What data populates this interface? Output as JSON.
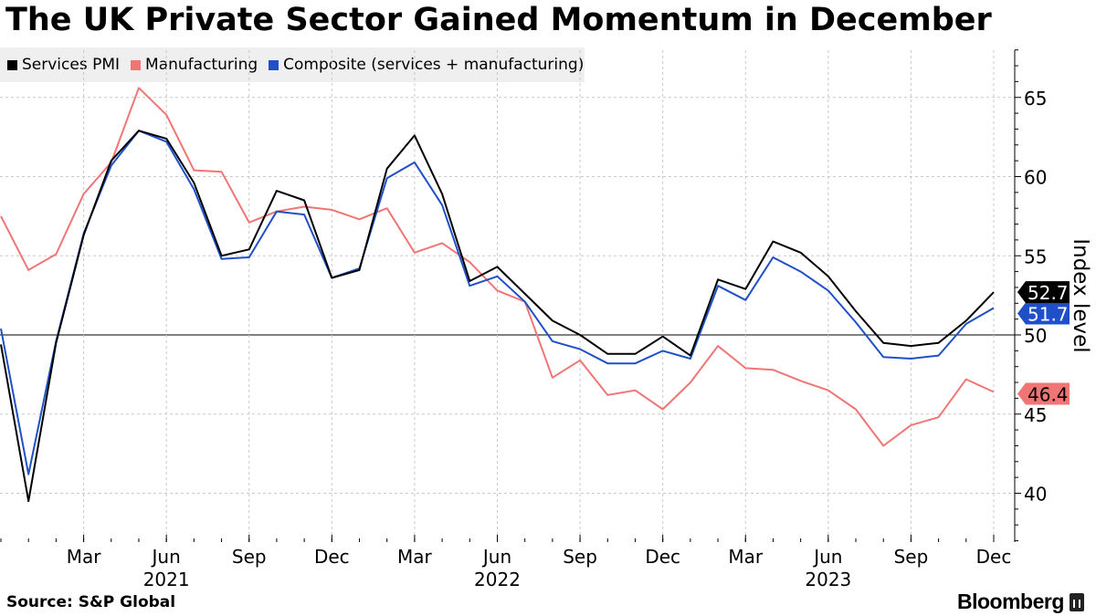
{
  "title": "The UK Private Sector Gained Momentum in December",
  "source": "Source: S&P Global",
  "brand": "Bloomberg",
  "colors": {
    "services": "#000000",
    "manufacturing": "#f07575",
    "composite": "#1f50c8"
  },
  "chart_data": {
    "type": "line",
    "title": "The UK Private Sector Gained Momentum in December",
    "ylabel": "Index level",
    "xlabel": "",
    "ylim": [
      37,
      68
    ],
    "yticks": [
      40,
      45,
      50,
      55,
      60,
      65
    ],
    "reference_line": 50,
    "x": [
      "Dec 2020",
      "Jan 2021",
      "Feb 2021",
      "Mar 2021",
      "Apr 2021",
      "May 2021",
      "Jun 2021",
      "Jul 2021",
      "Aug 2021",
      "Sep 2021",
      "Oct 2021",
      "Nov 2021",
      "Dec 2021",
      "Jan 2022",
      "Feb 2022",
      "Mar 2022",
      "Apr 2022",
      "May 2022",
      "Jun 2022",
      "Jul 2022",
      "Aug 2022",
      "Sep 2022",
      "Oct 2022",
      "Nov 2022",
      "Dec 2022",
      "Jan 2023",
      "Feb 2023",
      "Mar 2023",
      "Apr 2023",
      "May 2023",
      "Jun 2023",
      "Jul 2023",
      "Aug 2023",
      "Sep 2023",
      "Oct 2023",
      "Nov 2023",
      "Dec 2023"
    ],
    "x_ticks": [
      {
        "label": "Mar",
        "index": 3
      },
      {
        "label": "Jun",
        "index": 6
      },
      {
        "label": "Sep",
        "index": 9
      },
      {
        "label": "Dec",
        "index": 12
      },
      {
        "label": "Mar",
        "index": 15
      },
      {
        "label": "Jun",
        "index": 18
      },
      {
        "label": "Sep",
        "index": 21
      },
      {
        "label": "Dec",
        "index": 24
      },
      {
        "label": "Mar",
        "index": 27
      },
      {
        "label": "Jun",
        "index": 30
      },
      {
        "label": "Sep",
        "index": 33
      },
      {
        "label": "Dec",
        "index": 36
      }
    ],
    "year_labels": [
      {
        "label": "2021",
        "index": 6
      },
      {
        "label": "2022",
        "index": 18
      },
      {
        "label": "2023",
        "index": 30
      }
    ],
    "series": [
      {
        "name": "Services PMI",
        "key": "services",
        "values": [
          49.4,
          39.5,
          49.5,
          56.3,
          61.0,
          62.9,
          62.4,
          59.6,
          55.0,
          55.4,
          59.1,
          58.5,
          53.6,
          54.1,
          60.5,
          62.6,
          58.9,
          53.4,
          54.3,
          52.6,
          50.9,
          50.0,
          48.8,
          48.8,
          49.9,
          48.7,
          53.5,
          52.9,
          55.9,
          55.2,
          53.7,
          51.5,
          49.5,
          49.3,
          49.5,
          50.9,
          52.7
        ],
        "end_label": "52.7"
      },
      {
        "name": "Manufacturing",
        "key": "manufacturing",
        "values": [
          57.5,
          54.1,
          55.1,
          58.9,
          60.9,
          65.6,
          63.9,
          60.4,
          60.3,
          57.1,
          57.8,
          58.1,
          57.9,
          57.3,
          58.0,
          55.2,
          55.8,
          54.6,
          52.8,
          52.1,
          47.3,
          48.4,
          46.2,
          46.5,
          45.3,
          47.0,
          49.3,
          47.9,
          47.8,
          47.1,
          46.5,
          45.3,
          43.0,
          44.3,
          44.8,
          47.2,
          46.4
        ],
        "end_label": "46.4"
      },
      {
        "name": "Composite (services + manufacturing)",
        "key": "composite",
        "values": [
          50.4,
          41.2,
          49.6,
          56.4,
          60.7,
          62.9,
          62.2,
          59.2,
          54.8,
          54.9,
          57.8,
          57.6,
          53.6,
          54.2,
          59.9,
          60.9,
          58.2,
          53.1,
          53.7,
          52.1,
          49.6,
          49.1,
          48.2,
          48.2,
          49.0,
          48.5,
          53.1,
          52.2,
          54.9,
          54.0,
          52.8,
          50.8,
          48.6,
          48.5,
          48.7,
          50.7,
          51.7
        ],
        "end_label": "51.7"
      }
    ]
  }
}
